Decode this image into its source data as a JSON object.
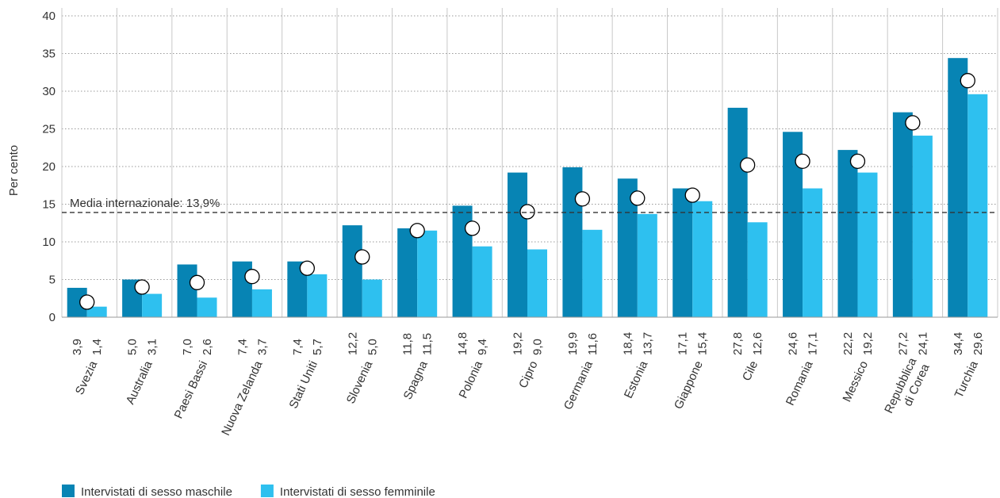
{
  "chart_data": {
    "type": "bar",
    "y_label": "Per cento",
    "categories": [
      "Svezia",
      "Australia",
      "Paesi Bassi",
      "Nuova Zelanda",
      "Stati Uniti",
      "Slovenia",
      "Spagna",
      "Polonia",
      "Cipro",
      "Germania",
      "Estonia",
      "Giappone",
      "Cile",
      "Romania",
      "Messico",
      [
        "Repubblica",
        "di Corea"
      ],
      "Turchia"
    ],
    "series": [
      {
        "name": "Intervistati di sesso maschile",
        "color": "#0784b4",
        "values": [
          3.9,
          5.0,
          7.0,
          7.4,
          7.4,
          12.2,
          11.8,
          14.8,
          19.2,
          19.9,
          18.4,
          17.1,
          27.8,
          24.6,
          22.2,
          27.2,
          34.4
        ],
        "value_labels": [
          "3,9",
          "5,0",
          "7,0",
          "7,4",
          "7,4",
          "12,2",
          "11,8",
          "14,8",
          "19,2",
          "19,9",
          "18,4",
          "17,1",
          "27,8",
          "24,6",
          "22,2",
          "27,2",
          "34,4"
        ]
      },
      {
        "name": "Intervistati di sesso femminile",
        "color": "#2ec0ef",
        "values": [
          1.4,
          3.1,
          2.6,
          3.7,
          5.7,
          5.0,
          11.5,
          9.4,
          9.0,
          11.6,
          13.7,
          15.4,
          12.6,
          17.1,
          19.2,
          24.1,
          29.6
        ],
        "value_labels": [
          "1,4",
          "3,1",
          "2,6",
          "3,7",
          "5,7",
          "5,0",
          "11,5",
          "9,4",
          "9,0",
          "11,6",
          "13,7",
          "15,4",
          "12,6",
          "17,1",
          "19,2",
          "24,1",
          "29,6"
        ]
      }
    ],
    "markers": {
      "color": "#ffffff",
      "values": [
        2.0,
        4.0,
        4.6,
        5.4,
        6.5,
        8.0,
        11.5,
        11.8,
        14.0,
        15.7,
        15.8,
        16.2,
        20.2,
        20.7,
        20.7,
        25.8,
        31.4
      ]
    },
    "reference_line": {
      "value": 13.9,
      "label": "Media internazionale: 13,9%"
    },
    "ylim": [
      0,
      40
    ],
    "yticks": [
      0,
      5,
      10,
      15,
      20,
      25,
      30,
      35,
      40
    ],
    "grid": true
  }
}
